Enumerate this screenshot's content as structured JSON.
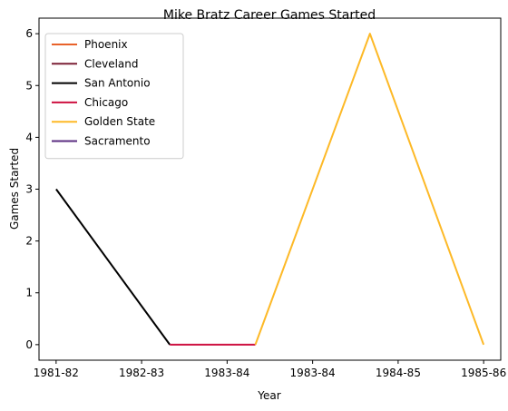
{
  "chart_data": {
    "type": "line",
    "title": "Mike Bratz Career Games Started",
    "xlabel": "Year",
    "ylabel": "Games Started",
    "x_ticks": [
      "1981-82",
      "1982-83",
      "1983-84",
      "1983-84",
      "1984-85",
      "1985-86"
    ],
    "x_index_range": [
      -0.2,
      5.2
    ],
    "ylim": [
      -0.3,
      6.3
    ],
    "y_ticks": [
      0,
      1,
      2,
      3,
      4,
      5,
      6
    ],
    "grid": false,
    "legend_position": "upper-left",
    "series": [
      {
        "name": "Phoenix",
        "color": "#e8622a",
        "points": []
      },
      {
        "name": "Cleveland",
        "color": "#7b2136",
        "points": []
      },
      {
        "name": "San Antonio",
        "color": "#000000",
        "points": [
          {
            "x": "1981-82",
            "y": 3
          },
          {
            "x": "1982-83",
            "y": 0
          }
        ]
      },
      {
        "name": "Chicago",
        "color": "#ce1141",
        "points": [
          {
            "x": "1982-83",
            "y": 0
          },
          {
            "x": "1983-84",
            "y": 0
          }
        ]
      },
      {
        "name": "Golden State",
        "color": "#fdb927",
        "points": [
          {
            "x": "1983-84",
            "y": 0
          },
          {
            "x": "1984-85",
            "y": 6
          },
          {
            "x": "1985-86",
            "y": 0
          }
        ]
      },
      {
        "name": "Sacramento",
        "color": "#5a2d81",
        "points": []
      }
    ]
  }
}
